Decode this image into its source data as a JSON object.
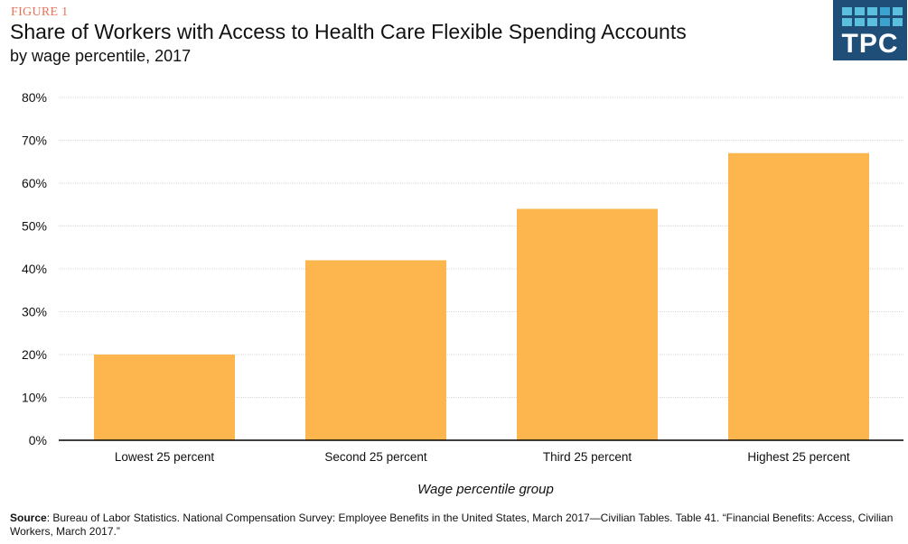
{
  "header": {
    "figure_label": "FIGURE 1",
    "title": "Share of Workers with Access to Health Care Flexible Spending Accounts",
    "subtitle": "by wage percentile, 2017",
    "logo_text": "TPC"
  },
  "colors": {
    "bar": "#fdb64d",
    "figure_label": "#e8735a",
    "logo_bg": "#1f4e79",
    "logo_tile": "#5bc0de"
  },
  "chart_data": {
    "type": "bar",
    "title": "Share of Workers with Access to Health Care Flexible Spending Accounts",
    "subtitle": "by wage percentile, 2017",
    "categories": [
      "Lowest 25 percent",
      "Second 25 percent",
      "Third 25 percent",
      "Highest 25 percent"
    ],
    "values": [
      20,
      42,
      54,
      67
    ],
    "unit": "%",
    "xlabel": "Wage percentile group",
    "ylabel": "",
    "ylim": [
      0,
      80
    ],
    "yticks": [
      0,
      10,
      20,
      30,
      40,
      50,
      60,
      70,
      80
    ],
    "ytick_labels": [
      "0%",
      "10%",
      "20%",
      "30%",
      "40%",
      "50%",
      "60%",
      "70%",
      "80%"
    ],
    "grid": true,
    "legend": "none"
  },
  "footer": {
    "source_label": "Source",
    "source_text": ": Bureau of Labor Statistics. National Compensation Survey: Employee Benefits in the United States, March 2017—Civilian  Tables. Table 41. “Financial Benefits: Access, Civilian Workers, March 2017.”"
  }
}
